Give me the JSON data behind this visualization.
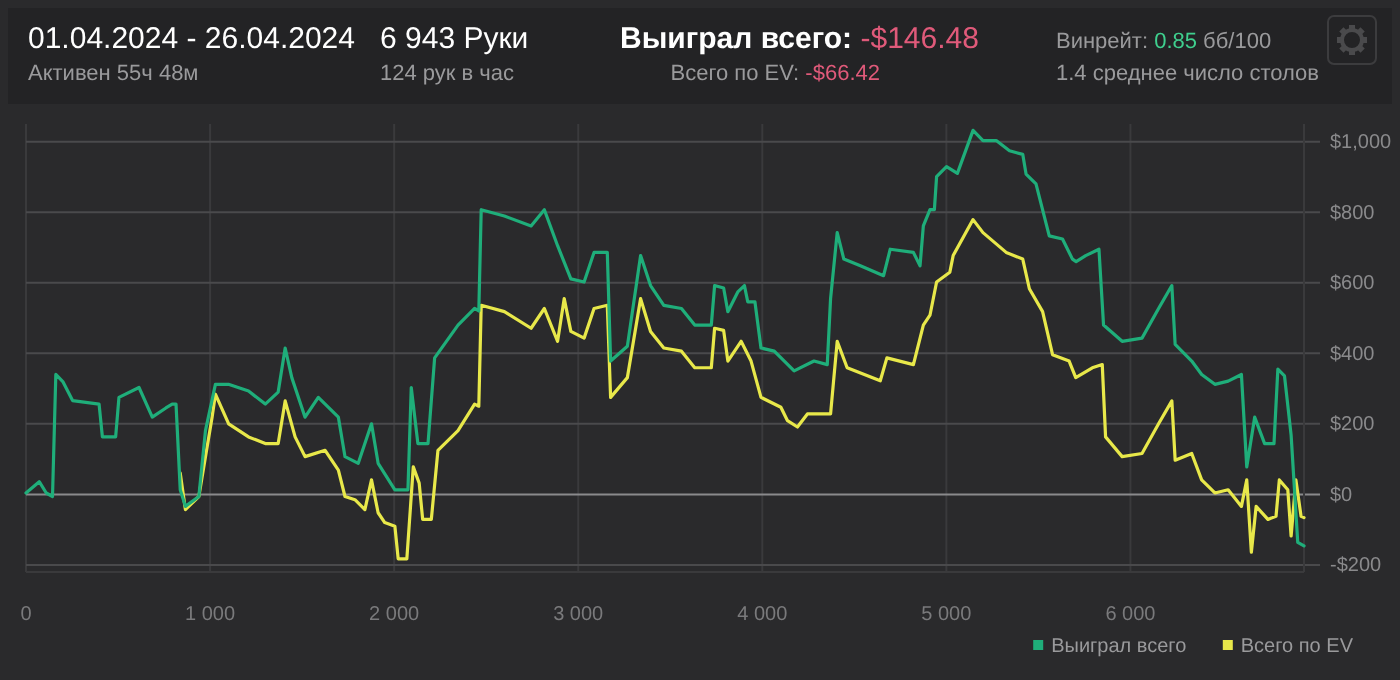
{
  "chart_data": {
    "type": "line",
    "title": "01.04.2024 - 26.04.2024",
    "subtitle": "Активен 55ч 48м",
    "annotations": [
      "6 943 Руки",
      "124 рук в час",
      "Выиграл всего:",
      "-$146.48",
      "Всего по EV:",
      "-$66.42",
      "Винрейт:",
      "0.85",
      "бб/100",
      "1.4 среднее число столов"
    ],
    "xlim": [
      0,
      6943
    ],
    "xticks": [
      0,
      {
        "value": 1000,
        "label": "1 000"
      },
      {
        "value": 2000,
        "label": "2 000"
      },
      {
        "value": 3000,
        "label": "3 000"
      },
      {
        "value": 4000,
        "label": "4 000"
      },
      {
        "value": 5000,
        "label": "5 000"
      },
      {
        "value": 6000,
        "label": "6 000"
      }
    ],
    "ylim": [
      -220,
      1050
    ],
    "yticks": [
      {
        "value": -200,
        "label": "-$200"
      },
      {
        "value": 0,
        "label": "$0"
      },
      {
        "value": 200,
        "label": "$200"
      },
      {
        "value": 400,
        "label": "$400"
      },
      {
        "value": 600,
        "label": "$600"
      },
      {
        "value": 800,
        "label": "$800"
      },
      {
        "value": 1000,
        "label": "$1,000"
      }
    ],
    "grid": true,
    "legend": "bottom right",
    "marker": "none",
    "line_style": "solid",
    "series": [
      {
        "name": "Выиграл всего",
        "color": "#1fae7a",
        "x": [
          0,
          72,
          110,
          144,
          162,
          200,
          253,
          397,
          415,
          487,
          505,
          614,
          686,
          760,
          794,
          815,
          838,
          866,
          939,
          975,
          1029,
          1100,
          1209,
          1300,
          1370,
          1408,
          1444,
          1516,
          1588,
          1697,
          1733,
          1805,
          1877,
          1913,
          2004,
          2075,
          2093,
          2129,
          2184,
          2220,
          2347,
          2437,
          2460,
          2473,
          2599,
          2744,
          2816,
          2888,
          2960,
          3032,
          3086,
          3158,
          3176,
          3267,
          3339,
          3393,
          3465,
          3561,
          3633,
          3723,
          3741,
          3790,
          3813,
          3867,
          3903,
          3921,
          3960,
          3993,
          4065,
          4173,
          4281,
          4353,
          4371,
          4407,
          4443,
          4533,
          4659,
          4695,
          4821,
          4857,
          4875,
          4911,
          4935,
          4947,
          5001,
          5060,
          5145,
          5199,
          5271,
          5343,
          5415,
          5433,
          5487,
          5559,
          5631,
          5685,
          5705,
          5757,
          5829,
          5854,
          5955,
          6063,
          6153,
          6225,
          6243,
          6333,
          6387,
          6459,
          6531,
          6603,
          6632,
          6675,
          6729,
          6780,
          6801,
          6837,
          6873,
          6909,
          6943
        ],
        "values": [
          4,
          36,
          4,
          -6,
          340,
          320,
          266,
          256,
          163,
          163,
          275,
          303,
          219,
          245,
          256,
          256,
          13,
          -34,
          -6,
          181,
          312,
          312,
          293,
          256,
          290,
          415,
          331,
          219,
          275,
          219,
          107,
          88,
          200,
          88,
          13,
          13,
          303,
          144,
          144,
          387,
          480,
          527,
          520,
          807,
          789,
          761,
          807,
          705,
          611,
          602,
          686,
          686,
          378,
          420,
          677,
          592,
          536,
          527,
          480,
          480,
          592,
          585,
          518,
          574,
          592,
          546,
          546,
          415,
          406,
          350,
          378,
          368,
          555,
          742,
          667,
          648,
          620,
          695,
          686,
          648,
          761,
          807,
          807,
          901,
          929,
          910,
          1032,
          1003,
          1003,
          974,
          964,
          908,
          880,
          733,
          724,
          667,
          660,
          677,
          695,
          480,
          434,
          443,
          527,
          592,
          425,
          378,
          340,
          312,
          321,
          340,
          78,
          219,
          144,
          144,
          355,
          336,
          168,
          -136,
          -146
        ]
      },
      {
        "name": "Всего по EV",
        "color": "#e8e84a",
        "x": [
          838,
          866,
          939,
          1011,
          1029,
          1101,
          1209,
          1300,
          1370,
          1408,
          1462,
          1516,
          1625,
          1697,
          1733,
          1787,
          1841,
          1877,
          1913,
          1949,
          2004,
          2022,
          2069,
          2104,
          2136,
          2155,
          2202,
          2238,
          2347,
          2437,
          2460,
          2473,
          2599,
          2744,
          2816,
          2888,
          2924,
          2960,
          3032,
          3086,
          3158,
          3176,
          3267,
          3339,
          3393,
          3465,
          3561,
          3633,
          3723,
          3741,
          3790,
          3813,
          3885,
          3939,
          3993,
          4101,
          4137,
          4191,
          4245,
          4371,
          4407,
          4461,
          4641,
          4677,
          4821,
          4875,
          4911,
          4947,
          5019,
          5037,
          5145,
          5199,
          5325,
          5415,
          5451,
          5523,
          5577,
          5667,
          5703,
          5793,
          5847,
          5865,
          5955,
          6063,
          6153,
          6225,
          6243,
          6333,
          6387,
          6459,
          6531,
          6603,
          6632,
          6657,
          6683,
          6747,
          6791,
          6809,
          6855,
          6873,
          6899,
          6927,
          6943
        ],
        "values": [
          60,
          -43,
          -6,
          219,
          284,
          200,
          163,
          144,
          144,
          265,
          163,
          107,
          125,
          69,
          -6,
          -15,
          -43,
          41,
          -52,
          -80,
          -90,
          -183,
          -183,
          78,
          32,
          -71,
          -71,
          125,
          181,
          256,
          250,
          536,
          518,
          471,
          527,
          434,
          555,
          462,
          443,
          527,
          536,
          275,
          331,
          555,
          462,
          415,
          406,
          359,
          359,
          471,
          465,
          378,
          434,
          378,
          275,
          247,
          209,
          191,
          228,
          228,
          434,
          359,
          322,
          387,
          368,
          480,
          508,
          602,
          630,
          677,
          779,
          742,
          686,
          667,
          583,
          518,
          396,
          378,
          331,
          359,
          368,
          163,
          107,
          116,
          200,
          265,
          97,
          116,
          41,
          4,
          13,
          -34,
          41,
          -164,
          -34,
          -71,
          -62,
          41,
          13,
          -118,
          41,
          -62,
          -66
        ]
      }
    ]
  }
}
